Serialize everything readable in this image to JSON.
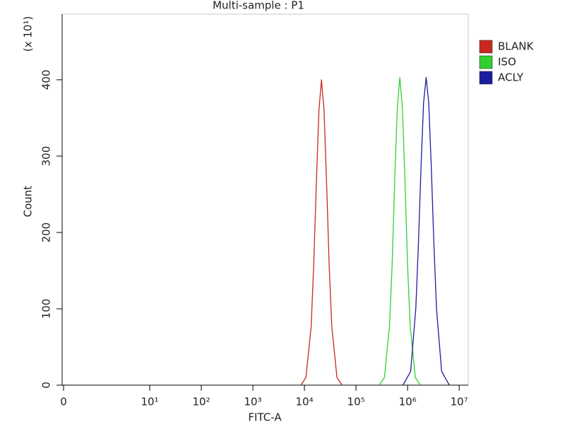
{
  "chart_data": {
    "type": "line",
    "title": "Multi-sample : P1",
    "x_label": "FITC-A",
    "y_label": "Count",
    "y_multiplier_label": "(x 10¹)",
    "xscale": "log",
    "xlim": [
      0,
      15000000
    ],
    "xticks": [
      0,
      {
        "value": 10,
        "label": "10¹"
      },
      {
        "value": 100,
        "label": "10²"
      },
      {
        "value": 1000,
        "label": "10³"
      },
      {
        "value": 10000,
        "label": "10⁴"
      },
      {
        "value": 100000,
        "label": "10⁵"
      },
      {
        "value": 1000000,
        "label": "10⁶"
      },
      {
        "value": 10000000,
        "label": "10⁷"
      }
    ],
    "ylim": [
      0,
      486
    ],
    "yticks": [
      0,
      100,
      200,
      300,
      400
    ],
    "legend": "right",
    "series": [
      {
        "name": "BLANK",
        "color": "#c8281e",
        "x": [
          8500,
          10700,
          13500,
          15100,
          17000,
          19100,
          21400,
          24000,
          26900,
          30200,
          33900,
          42700,
          53700
        ],
        "values": [
          0,
          10,
          77,
          156,
          264,
          360,
          400,
          360,
          264,
          156,
          77,
          10,
          0
        ]
      },
      {
        "name": "ISO",
        "color": "#2fd02f",
        "x": [
          282000,
          355000,
          447000,
          501000,
          562000,
          631000,
          708000,
          794000,
          891000,
          1000000,
          1122000,
          1413000,
          1778000
        ],
        "values": [
          0,
          10,
          78,
          157,
          266,
          363,
          403,
          363,
          266,
          157,
          78,
          10,
          0
        ]
      },
      {
        "name": "ACLY",
        "color": "#1c1c9c",
        "x": [
          813000,
          1148000,
          1445000,
          1622000,
          1820000,
          2042000,
          2291000,
          2570000,
          2884000,
          3236000,
          3631000,
          4571000,
          6457000
        ],
        "values": [
          0,
          18,
          101,
          185,
          285,
          370,
          403,
          370,
          285,
          185,
          101,
          18,
          0
        ]
      }
    ]
  }
}
